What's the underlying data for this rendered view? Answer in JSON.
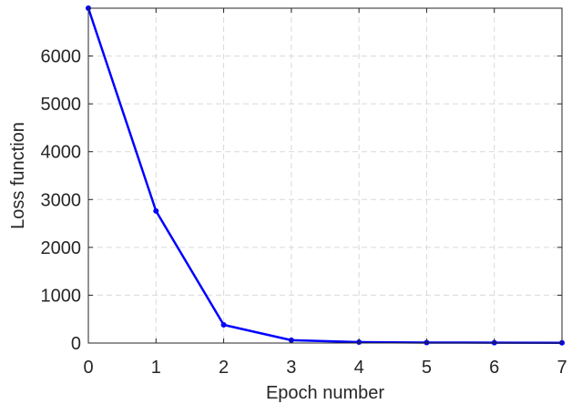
{
  "chart_data": {
    "type": "line",
    "title": "",
    "xlabel": "Epoch number",
    "ylabel": "Loss function",
    "xlim": [
      0,
      7
    ],
    "ylim": [
      0,
      7000
    ],
    "xticks": [
      0,
      1,
      2,
      3,
      4,
      5,
      6,
      7
    ],
    "yticks": [
      0,
      1000,
      2000,
      3000,
      4000,
      5000,
      6000
    ],
    "grid": true,
    "series": [
      {
        "color": "#0000ff",
        "x": [
          0,
          1,
          2,
          3,
          4,
          5,
          6,
          7
        ],
        "y": [
          7000,
          2760,
          380,
          60,
          20,
          10,
          8,
          5
        ]
      }
    ]
  }
}
